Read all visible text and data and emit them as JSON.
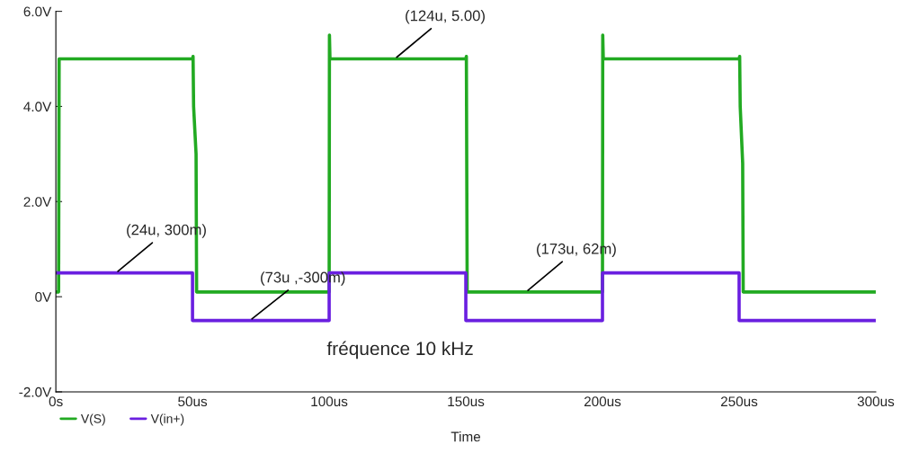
{
  "chart_data": {
    "type": "line",
    "xlabel": "Time",
    "xlim": [
      0,
      300
    ],
    "ylim": [
      -2.0,
      6.0
    ],
    "xticks": [
      {
        "value": 0,
        "label": "0s"
      },
      {
        "value": 50,
        "label": "50us"
      },
      {
        "value": 100,
        "label": "100us"
      },
      {
        "value": 150,
        "label": "150us"
      },
      {
        "value": 200,
        "label": "200us"
      },
      {
        "value": 250,
        "label": "250us"
      },
      {
        "value": 300,
        "label": "300us"
      }
    ],
    "yticks": [
      {
        "value": -2.0,
        "label": "-2.0V"
      },
      {
        "value": 0,
        "label": "0V"
      },
      {
        "value": 2.0,
        "label": "2.0V"
      },
      {
        "value": 4.0,
        "label": "4.0V"
      },
      {
        "value": 6.0,
        "label": "6.0V"
      }
    ],
    "grid": false,
    "legend": "bottom left",
    "series": [
      {
        "name": "V(S)",
        "color": "#22aa22",
        "x": [
          0,
          1,
          1.2,
          50,
          50.2,
          50.4,
          51.3,
          51.5,
          100,
          100.1,
          100.3,
          150,
          150.2,
          150.5,
          200,
          200.1,
          200.3,
          250,
          250.2,
          250.4,
          251.3,
          251.5,
          300
        ],
        "values": [
          0.1,
          0.1,
          5.0,
          5.0,
          5.05,
          4.0,
          3.0,
          0.1,
          0.1,
          5.5,
          5.0,
          5.0,
          5.05,
          0.1,
          0.1,
          5.5,
          5.0,
          5.0,
          5.05,
          4.0,
          2.8,
          0.1,
          0.1
        ]
      },
      {
        "name": "V(in+)",
        "color": "#6a1fe0",
        "x": [
          0,
          50,
          50,
          100,
          100,
          150,
          150,
          200,
          200,
          250,
          250,
          300
        ],
        "values": [
          0.5,
          0.5,
          -0.5,
          -0.5,
          0.5,
          0.5,
          -0.5,
          -0.5,
          0.5,
          0.5,
          -0.5,
          -0.5
        ]
      }
    ],
    "annotations": [
      {
        "text": "(24u, 300m)",
        "x": 22,
        "y": 0.5
      },
      {
        "text": "(73u ,-300m)",
        "x": 71,
        "y": -0.5
      },
      {
        "text": "(124u, 5.00)",
        "x": 124,
        "y": 5.0
      },
      {
        "text": "(173u, 62m)",
        "x": 172,
        "y": 0.1
      },
      "fréquence 10 kHz"
    ]
  }
}
